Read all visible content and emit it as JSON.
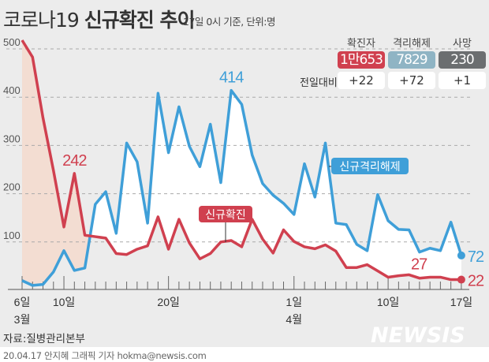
{
  "header": {
    "title_a": "코로나19",
    "title_b": "신규확진 추이",
    "subtitle": "17일 0시 기준, 단위:명"
  },
  "summary": {
    "columns": [
      {
        "label": "확진자",
        "value": "1만653",
        "delta": "+22",
        "color": "#d0404f"
      },
      {
        "label": "격리해제",
        "value": "7829",
        "delta": "+72",
        "color": "#8fb4c4"
      },
      {
        "label": "사망",
        "value": "230",
        "delta": "+1",
        "color": "#6b6e70"
      }
    ],
    "compare_label": "전일대비"
  },
  "chart_data": {
    "type": "line",
    "title": "신규확진 추이",
    "x": [
      "3-06",
      "3-07",
      "3-08",
      "3-09",
      "3-10",
      "3-11",
      "3-12",
      "3-13",
      "3-14",
      "3-15",
      "3-16",
      "3-17",
      "3-18",
      "3-19",
      "3-20",
      "3-21",
      "3-22",
      "3-23",
      "3-24",
      "3-25",
      "3-26",
      "3-27",
      "3-28",
      "3-29",
      "3-30",
      "3-31",
      "4-01",
      "4-02",
      "4-03",
      "4-04",
      "4-05",
      "4-06",
      "4-07",
      "4-08",
      "4-09",
      "4-10",
      "4-11",
      "4-12",
      "4-13",
      "4-14",
      "4-15",
      "4-16",
      "4-17"
    ],
    "series": [
      {
        "name": "신규확진",
        "color": "#d0404f",
        "values": [
          518,
          483,
          357,
          248,
          131,
          242,
          114,
          111,
          108,
          76,
          74,
          85,
          92,
          152,
          85,
          147,
          98,
          65,
          76,
          100,
          103,
          90,
          147,
          106,
          77,
          125,
          101,
          90,
          86,
          94,
          81,
          47,
          47,
          53,
          40,
          27,
          30,
          32,
          25,
          27,
          27,
          22,
          22
        ]
      },
      {
        "name": "신규격리해제",
        "color": "#3f9fd8",
        "values": [
          20,
          10,
          12,
          38,
          82,
          41,
          46,
          178,
          204,
          118,
          305,
          266,
          139,
          408,
          285,
          380,
          298,
          256,
          344,
          223,
          414,
          385,
          280,
          221,
          197,
          180,
          157,
          262,
          193,
          305,
          139,
          136,
          95,
          82,
          198,
          144,
          126,
          125,
          79,
          87,
          82,
          141,
          72
        ]
      }
    ],
    "yticks": [
      100,
      200,
      300,
      400,
      500
    ],
    "ylim": [
      0,
      520
    ],
    "xtick_labels": [
      {
        "at": "3-06",
        "label": "6일",
        "month": "3월"
      },
      {
        "at": "3-10",
        "label": "10일"
      },
      {
        "at": "3-20",
        "label": "20일"
      },
      {
        "at": "4-01",
        "label": "1일",
        "month": "4월"
      },
      {
        "at": "4-10",
        "label": "10일"
      },
      {
        "at": "4-17",
        "label": "17일"
      }
    ],
    "annotations": [
      {
        "text": "242",
        "series": "신규확진",
        "at": "3-11"
      },
      {
        "text": "414",
        "series": "신규격리해제",
        "at": "3-26"
      },
      {
        "text": "27",
        "series": "신규확진",
        "at": "4-14"
      },
      {
        "text": "72",
        "series": "신규격리해제",
        "at": "4-17"
      },
      {
        "text": "22",
        "series": "신규확진",
        "at": "4-17"
      }
    ],
    "grid": true,
    "colors": {
      "shade_red_above": "#f3ddd2",
      "shade_blue_above": "#ffffff"
    }
  },
  "footer": {
    "source": "자료:질병관리본부",
    "credit": "20.04.17 안지혜 그래픽 기자 hokma@newsis.com",
    "logo": "NEWSIS"
  }
}
